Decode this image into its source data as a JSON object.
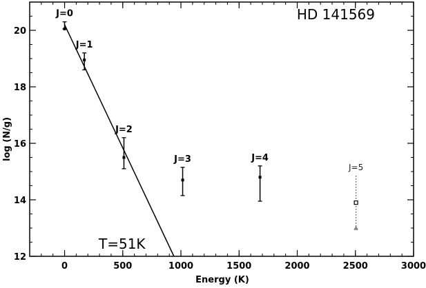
{
  "chart_data": {
    "type": "scatter",
    "title": "HD 141569",
    "xlabel": "Energy (K)",
    "ylabel": "log (N/g)",
    "xlim": [
      -300,
      3000
    ],
    "ylim": [
      12,
      21
    ],
    "x_ticks": [
      0,
      500,
      1000,
      1500,
      2000,
      2500,
      3000
    ],
    "y_ticks": [
      12,
      14,
      16,
      18,
      20
    ],
    "y_minor_step": 0.5,
    "x_minor_step": 100,
    "grid": false,
    "points": [
      {
        "label": "J=0",
        "x": 0,
        "y": 20.05,
        "err_low": 0.0,
        "err_high": 0.25,
        "style": "solid"
      },
      {
        "label": "J=1",
        "x": 170,
        "y": 18.95,
        "err_low": 0.35,
        "err_high": 0.25,
        "style": "solid"
      },
      {
        "label": "J=2",
        "x": 510,
        "y": 15.5,
        "err_low": 0.4,
        "err_high": 0.7,
        "style": "solid"
      },
      {
        "label": "J=3",
        "x": 1015,
        "y": 14.7,
        "err_low": 0.55,
        "err_high": 0.45,
        "style": "solid"
      },
      {
        "label": "J=4",
        "x": 1680,
        "y": 14.8,
        "err_low": 0.85,
        "err_high": 0.4,
        "style": "solid"
      },
      {
        "label": "J=5",
        "x": 2505,
        "y": 13.9,
        "err_low": 0.95,
        "err_high": 0.95,
        "style": "dotted"
      }
    ],
    "fit_line": {
      "x": [
        0,
        940
      ],
      "y": [
        20.2,
        12.0
      ]
    },
    "annotation": "T=51K"
  }
}
